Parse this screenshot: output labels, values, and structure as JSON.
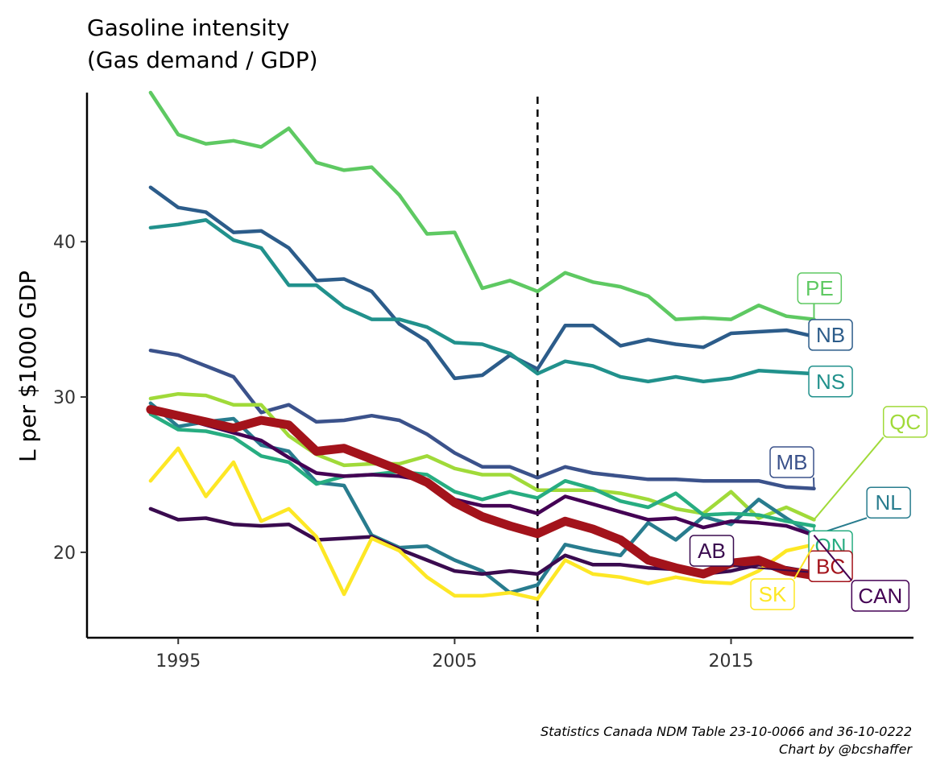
{
  "chart_data": {
    "type": "line",
    "title_line1": "Gasoline intensity",
    "title_line2": "(Gas demand / GDP)",
    "xlabel": "",
    "ylabel": "L per $1000 GDP",
    "x": [
      1994,
      1995,
      1996,
      1997,
      1998,
      1999,
      2000,
      2001,
      2002,
      2003,
      2004,
      2005,
      2006,
      2007,
      2008,
      2009,
      2010,
      2011,
      2012,
      2013,
      2014,
      2015,
      2016,
      2017,
      2018
    ],
    "xlim": [
      1991.7,
      2021.6
    ],
    "ylim": [
      14.5,
      49.6
    ],
    "xticks": [
      1995,
      2005,
      2015
    ],
    "xtick_labels": [
      "1995",
      "2005",
      "2015"
    ],
    "yticks": [
      20,
      30,
      40
    ],
    "ytick_labels": [
      "20",
      "30",
      "40"
    ],
    "vline_x": 2008,
    "grid": false,
    "legend": "none",
    "series": [
      {
        "name": "PE",
        "color": "#5ec962",
        "width": 4.5,
        "values": [
          49.6,
          46.9,
          46.3,
          46.5,
          46.1,
          47.3,
          45.1,
          44.6,
          44.8,
          43.0,
          40.5,
          40.6,
          37.0,
          37.5,
          36.8,
          38.0,
          37.4,
          37.1,
          36.5,
          35.0,
          35.1,
          35.0,
          35.9,
          35.2,
          35.0
        ]
      },
      {
        "name": "NB",
        "color": "#2c5c8a",
        "width": 4.5,
        "values": [
          43.5,
          42.2,
          41.9,
          40.6,
          40.7,
          39.6,
          37.5,
          37.6,
          36.8,
          34.7,
          33.6,
          31.2,
          31.4,
          32.7,
          31.8,
          34.6,
          34.6,
          33.3,
          33.7,
          33.4,
          33.2,
          34.1,
          34.2,
          34.3,
          33.9
        ]
      },
      {
        "name": "NS",
        "color": "#21918c",
        "width": 4.5,
        "values": [
          40.9,
          41.1,
          41.4,
          40.1,
          39.6,
          37.2,
          37.2,
          35.8,
          35.0,
          35.0,
          34.5,
          33.5,
          33.4,
          32.8,
          31.5,
          32.3,
          32.0,
          31.3,
          31.0,
          31.3,
          31.0,
          31.2,
          31.7,
          31.6,
          31.5
        ]
      },
      {
        "name": "MB",
        "color": "#3b528b",
        "width": 4.5,
        "values": [
          33.0,
          32.7,
          32.0,
          31.3,
          29.0,
          29.5,
          28.4,
          28.5,
          28.8,
          28.5,
          27.6,
          26.4,
          25.5,
          25.5,
          24.8,
          25.5,
          25.1,
          24.9,
          24.7,
          24.7,
          24.6,
          24.6,
          24.6,
          24.2,
          24.1
        ]
      },
      {
        "name": "QC",
        "color": "#a0da39",
        "width": 4.5,
        "values": [
          29.9,
          30.2,
          30.1,
          29.5,
          29.5,
          27.5,
          26.3,
          25.6,
          25.7,
          25.7,
          26.2,
          25.4,
          25.0,
          25.0,
          24.0,
          24.0,
          24.0,
          23.8,
          23.4,
          22.8,
          22.5,
          23.9,
          22.2,
          22.9,
          22.1
        ]
      },
      {
        "name": "NL",
        "color": "#287c8e",
        "width": 4.5,
        "values": [
          29.6,
          28.1,
          28.4,
          28.6,
          26.9,
          26.5,
          24.5,
          24.3,
          21.1,
          20.3,
          20.4,
          19.5,
          18.8,
          17.4,
          17.9,
          20.5,
          20.1,
          19.8,
          21.9,
          20.8,
          22.3,
          21.8,
          23.4,
          22.2,
          21.1
        ]
      },
      {
        "name": "ON",
        "color": "#27ad81",
        "width": 4.5,
        "values": [
          28.9,
          27.9,
          27.8,
          27.4,
          26.2,
          25.8,
          24.4,
          24.9,
          25.0,
          25.2,
          25.0,
          23.9,
          23.4,
          23.9,
          23.5,
          24.6,
          24.1,
          23.3,
          22.9,
          23.8,
          22.4,
          22.5,
          22.4,
          22.0,
          21.7
        ]
      },
      {
        "name": "CAN",
        "color": "#440154",
        "width": 4.5,
        "values": [
          29.2,
          28.7,
          28.2,
          27.7,
          27.2,
          26.1,
          25.1,
          24.9,
          25.0,
          24.9,
          24.6,
          23.4,
          23.0,
          23.0,
          22.5,
          23.6,
          23.1,
          22.6,
          22.1,
          22.2,
          21.6,
          22.0,
          21.9,
          21.7,
          21.1
        ]
      },
      {
        "name": "AB",
        "color": "#3a0b4f",
        "width": 4.5,
        "values": [
          22.8,
          22.1,
          22.2,
          21.8,
          21.7,
          21.8,
          20.8,
          20.9,
          21.0,
          20.2,
          19.5,
          18.8,
          18.6,
          18.8,
          18.6,
          19.8,
          19.2,
          19.2,
          19.0,
          18.9,
          18.6,
          18.8,
          19.2,
          19.0,
          18.7
        ]
      },
      {
        "name": "SK",
        "color": "#fde725",
        "width": 4.5,
        "values": [
          24.6,
          26.7,
          23.6,
          25.8,
          22.0,
          22.8,
          21.0,
          17.3,
          20.9,
          20.1,
          18.4,
          17.2,
          17.2,
          17.4,
          17.0,
          19.5,
          18.6,
          18.4,
          18.0,
          18.4,
          18.1,
          18.0,
          18.8,
          20.1,
          20.5
        ]
      },
      {
        "name": "BC",
        "color": "#a3131b",
        "width": 11,
        "values": [
          29.2,
          28.8,
          28.4,
          28.0,
          28.5,
          28.2,
          26.5,
          26.7,
          26.0,
          25.3,
          24.5,
          23.2,
          22.3,
          21.7,
          21.2,
          22.0,
          21.5,
          20.8,
          19.5,
          19.0,
          18.6,
          19.3,
          19.5,
          18.8,
          18.5
        ]
      }
    ],
    "annotations": [
      {
        "text": "PE",
        "color": "#5ec962",
        "x": 2018.2,
        "y": 37.0
      },
      {
        "text": "NB",
        "color": "#2c5c8a",
        "x": 2018.6,
        "y": 34.0
      },
      {
        "text": "NS",
        "color": "#21918c",
        "x": 2018.6,
        "y": 31.0
      },
      {
        "text": "QC",
        "color": "#a0da39",
        "x": 2021.3,
        "y": 28.4
      },
      {
        "text": "MB",
        "color": "#3b528b",
        "x": 2017.2,
        "y": 25.8
      },
      {
        "text": "NL",
        "color": "#287c8e",
        "x": 2020.7,
        "y": 23.2
      },
      {
        "text": "ON",
        "color": "#27ad81",
        "x": 2018.6,
        "y": 20.4
      },
      {
        "text": "AB",
        "color": "#3a0b4f",
        "x": 2014.3,
        "y": 20.1
      },
      {
        "text": "BC",
        "color": "#a3131b",
        "x": 2018.6,
        "y": 19.1
      },
      {
        "text": "SK",
        "color": "#fde725",
        "x": 2016.5,
        "y": 17.3
      },
      {
        "text": "CAN",
        "color": "#440154",
        "x": 2020.4,
        "y": 17.2
      }
    ],
    "caption_line1": "Statistics Canada NDM Table 23-10-0066 and 36-10-0222",
    "caption_line2": "Chart by @bcshaffer"
  }
}
